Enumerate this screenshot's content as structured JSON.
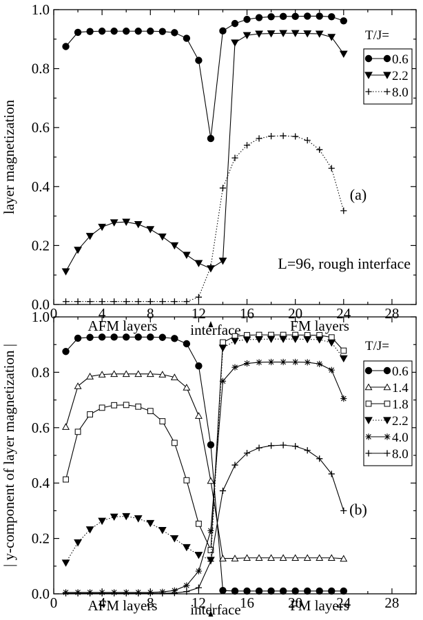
{
  "chart_data": [
    {
      "type": "line",
      "panel_label": "(a)",
      "annotation": "L=96, rough interface",
      "ylabel": "layer magnetization",
      "xlim": [
        0,
        30
      ],
      "ylim": [
        0,
        1.0
      ],
      "x_ticks": [
        "0",
        "4",
        "8",
        "12",
        "16",
        "20",
        "24",
        "28"
      ],
      "y_ticks": [
        "0.0",
        "0.2",
        "0.4",
        "0.6",
        "0.8",
        "1.0"
      ],
      "below_axis": {
        "left": "AFM layers",
        "middle": "interface",
        "right": "FM layers"
      },
      "legend_title": "T/J=",
      "grid": false,
      "series": [
        {
          "name": "0.6",
          "marker": "filled-circle",
          "line": "solid",
          "color": "#000000",
          "x": [
            1,
            2,
            3,
            4,
            5,
            6,
            7,
            8,
            9,
            10,
            11,
            12,
            13,
            14,
            15,
            16,
            17,
            18,
            19,
            20,
            21,
            22,
            23,
            24
          ],
          "y": [
            0.875,
            0.923,
            0.926,
            0.927,
            0.927,
            0.927,
            0.927,
            0.927,
            0.926,
            0.922,
            0.903,
            0.828,
            0.563,
            0.928,
            0.953,
            0.967,
            0.973,
            0.976,
            0.977,
            0.977,
            0.978,
            0.978,
            0.976,
            0.962
          ]
        },
        {
          "name": "2.2",
          "marker": "filled-triangle-down",
          "line": "solid",
          "color": "#000000",
          "x": [
            1,
            2,
            3,
            4,
            5,
            6,
            7,
            8,
            9,
            10,
            11,
            12,
            13,
            14,
            15,
            16,
            17,
            18,
            19,
            20,
            21,
            22,
            23,
            24
          ],
          "y": [
            0.112,
            0.185,
            0.232,
            0.263,
            0.278,
            0.28,
            0.272,
            0.255,
            0.23,
            0.2,
            0.168,
            0.14,
            0.122,
            0.148,
            0.888,
            0.913,
            0.918,
            0.919,
            0.92,
            0.92,
            0.919,
            0.918,
            0.907,
            0.85
          ]
        },
        {
          "name": "8.0",
          "marker": "plus",
          "line": "dotted",
          "color": "#000000",
          "x": [
            1,
            2,
            3,
            4,
            5,
            6,
            7,
            8,
            9,
            10,
            11,
            12,
            13,
            14,
            15,
            16,
            17,
            18,
            19,
            20,
            21,
            22,
            23,
            24
          ],
          "y": [
            0.01,
            0.01,
            0.01,
            0.01,
            0.01,
            0.01,
            0.01,
            0.01,
            0.01,
            0.01,
            0.01,
            0.025,
            0.128,
            0.395,
            0.497,
            0.54,
            0.563,
            0.571,
            0.572,
            0.57,
            0.557,
            0.525,
            0.462,
            0.318
          ]
        }
      ]
    },
    {
      "type": "line",
      "panel_label": "(b)",
      "ylabel": "| y-component of layer magnetization |",
      "xlim": [
        0,
        30
      ],
      "ylim": [
        0,
        1.0
      ],
      "x_ticks": [
        "0",
        "4",
        "8",
        "12",
        "16",
        "20",
        "24",
        "28"
      ],
      "y_ticks": [
        "0.0",
        "0.2",
        "0.4",
        "0.6",
        "0.8",
        "1.0"
      ],
      "below_axis": {
        "left": "AFM layers",
        "middle": "interface",
        "right": "FM layers"
      },
      "legend_title": "T/J=",
      "grid": false,
      "series": [
        {
          "name": "0.6",
          "marker": "filled-circle",
          "line": "solid",
          "color": "#000000",
          "x": [
            1,
            2,
            3,
            4,
            5,
            6,
            7,
            8,
            9,
            10,
            11,
            12,
            13,
            14,
            15,
            16,
            17,
            18,
            19,
            20,
            21,
            22,
            23,
            24
          ],
          "y": [
            0.875,
            0.923,
            0.926,
            0.927,
            0.927,
            0.927,
            0.927,
            0.927,
            0.926,
            0.922,
            0.903,
            0.823,
            0.538,
            0.012,
            0.01,
            0.01,
            0.01,
            0.01,
            0.01,
            0.01,
            0.01,
            0.01,
            0.01,
            0.01
          ]
        },
        {
          "name": "1.4",
          "marker": "open-triangle-up",
          "line": "solid",
          "color": "#000000",
          "x": [
            1,
            2,
            3,
            4,
            5,
            6,
            7,
            8,
            9,
            10,
            11,
            12,
            13,
            14,
            15,
            16,
            17,
            18,
            19,
            20,
            21,
            22,
            23,
            24
          ],
          "y": [
            0.603,
            0.75,
            0.785,
            0.792,
            0.794,
            0.794,
            0.794,
            0.794,
            0.792,
            0.782,
            0.745,
            0.643,
            0.408,
            0.128,
            0.128,
            0.13,
            0.13,
            0.13,
            0.13,
            0.13,
            0.13,
            0.13,
            0.13,
            0.127
          ]
        },
        {
          "name": "1.8",
          "marker": "open-square",
          "line": "solid",
          "color": "#000000",
          "x": [
            1,
            2,
            3,
            4,
            5,
            6,
            7,
            8,
            9,
            10,
            11,
            12,
            13,
            14,
            15,
            16,
            17,
            18,
            19,
            20,
            21,
            22,
            23,
            24
          ],
          "y": [
            0.413,
            0.585,
            0.648,
            0.672,
            0.681,
            0.682,
            0.676,
            0.66,
            0.623,
            0.545,
            0.41,
            0.253,
            0.158,
            0.908,
            0.93,
            0.934,
            0.935,
            0.935,
            0.935,
            0.935,
            0.934,
            0.934,
            0.926,
            0.878
          ]
        },
        {
          "name": "2.2",
          "marker": "filled-triangle-down",
          "line": "dotted",
          "color": "#000000",
          "x": [
            1,
            2,
            3,
            4,
            5,
            6,
            7,
            8,
            9,
            10,
            11,
            12,
            13,
            14,
            15,
            16,
            17,
            18,
            19,
            20,
            21,
            22,
            23,
            24
          ],
          "y": [
            0.112,
            0.185,
            0.232,
            0.263,
            0.278,
            0.28,
            0.272,
            0.255,
            0.23,
            0.2,
            0.168,
            0.14,
            0.122,
            0.888,
            0.913,
            0.918,
            0.919,
            0.92,
            0.92,
            0.92,
            0.919,
            0.918,
            0.907,
            0.85
          ]
        },
        {
          "name": "4.0",
          "marker": "asterisk",
          "line": "solid",
          "color": "#000000",
          "x": [
            1,
            2,
            3,
            4,
            5,
            6,
            7,
            8,
            9,
            10,
            11,
            12,
            13,
            14,
            15,
            16,
            17,
            18,
            19,
            20,
            21,
            22,
            23,
            24
          ],
          "y": [
            0.005,
            0.005,
            0.005,
            0.005,
            0.005,
            0.005,
            0.005,
            0.005,
            0.007,
            0.012,
            0.03,
            0.082,
            0.228,
            0.768,
            0.818,
            0.832,
            0.836,
            0.837,
            0.837,
            0.837,
            0.836,
            0.83,
            0.808,
            0.705
          ]
        },
        {
          "name": "8.0",
          "marker": "plus",
          "line": "solid",
          "color": "#000000",
          "x": [
            1,
            2,
            3,
            4,
            5,
            6,
            7,
            8,
            9,
            10,
            11,
            12,
            13,
            14,
            15,
            16,
            17,
            18,
            19,
            20,
            21,
            22,
            23,
            24
          ],
          "y": [
            0.002,
            0.002,
            0.002,
            0.002,
            0.002,
            0.002,
            0.002,
            0.002,
            0.002,
            0.003,
            0.008,
            0.022,
            0.118,
            0.372,
            0.465,
            0.508,
            0.527,
            0.535,
            0.537,
            0.533,
            0.518,
            0.488,
            0.433,
            0.3
          ]
        }
      ]
    }
  ]
}
